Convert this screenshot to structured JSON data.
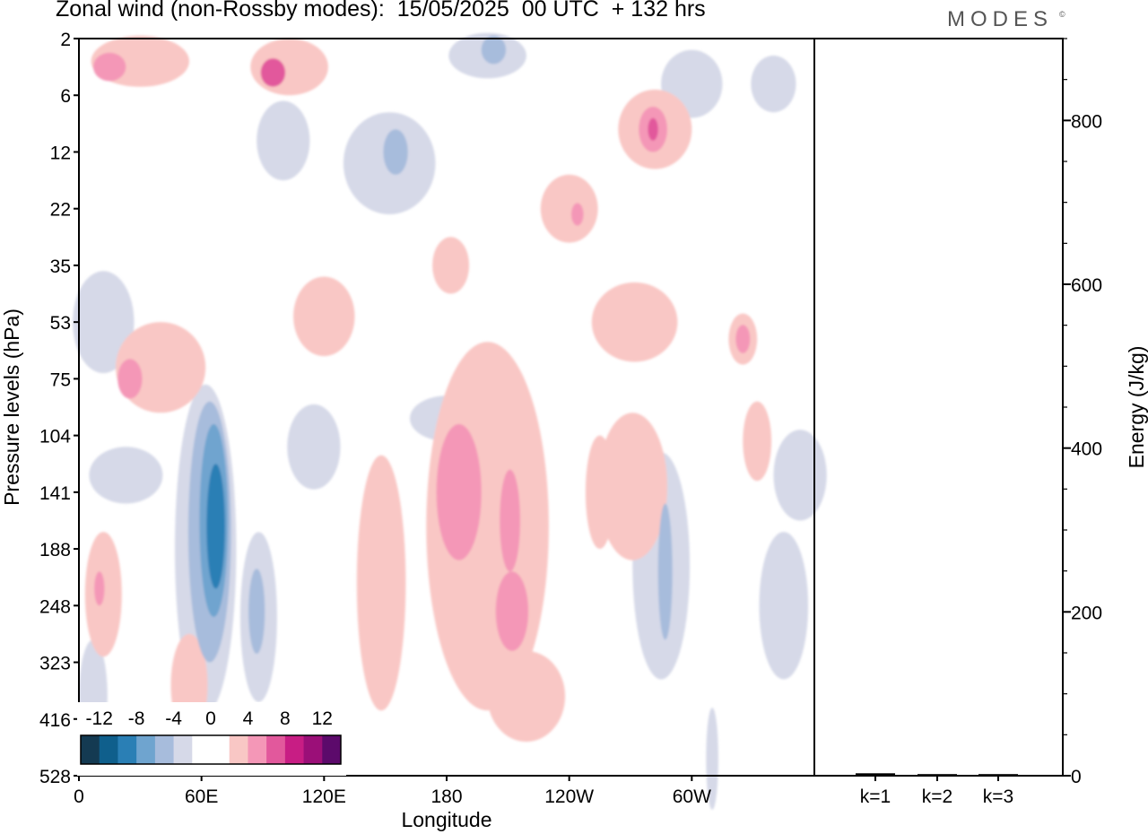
{
  "header": {
    "title": "Zonal wind (non-Rossby modes):  15/05/2025  00 UTC  + 132 hrs",
    "brand": "MODES",
    "brand_mark": "©"
  },
  "chart_data": [
    {
      "type": "heatmap",
      "title": "Zonal wind (non-Rossby modes):  15/05/2025  00 UTC  + 132 hrs",
      "xlabel": "Longitude",
      "ylabel": "Pressure levels (hPa)",
      "x_ticks": [
        "0",
        "60E",
        "120E",
        "180",
        "120W",
        "60W"
      ],
      "x_tick_values": [
        0,
        60,
        120,
        180,
        240,
        300
      ],
      "xlim": [
        0,
        360
      ],
      "y_ticks": [
        "2",
        "6",
        "12",
        "22",
        "35",
        "53",
        "75",
        "104",
        "141",
        "188",
        "248",
        "323",
        "416",
        "528"
      ],
      "y_scale": "pressure levels, top to bottom",
      "colorbar": {
        "labels": [
          "-12",
          "-8",
          "-4",
          "0",
          "4",
          "8",
          "12"
        ],
        "colors": [
          "#143a52",
          "#0f5f8c",
          "#2a7fb5",
          "#6fa4cf",
          "#a7bcdc",
          "#d6d9e8",
          "#ffffff",
          "#ffffff",
          "#f9c7c5",
          "#f497b7",
          "#e2589c",
          "#c81d84",
          "#9b0f78",
          "#5c0a6b"
        ]
      },
      "regions": [
        {
          "sign": "negative",
          "level": 3,
          "lon": 67,
          "level_index": 8.6,
          "w": 9,
          "h": 2.2
        },
        {
          "sign": "negative",
          "level": 2,
          "lon": 66,
          "level_index": 8.5,
          "w": 14,
          "h": 3.4
        },
        {
          "sign": "negative",
          "level": 1,
          "lon": 64,
          "level_index": 8.7,
          "w": 21,
          "h": 4.6
        },
        {
          "sign": "negative",
          "level": 0,
          "lon": 62,
          "level_index": 9.0,
          "w": 30,
          "h": 5.8
        },
        {
          "sign": "negative",
          "level": 1,
          "lon": 287,
          "level_index": 9.4,
          "w": 7,
          "h": 2.4
        },
        {
          "sign": "negative",
          "level": 0,
          "lon": 285,
          "level_index": 9.3,
          "w": 28,
          "h": 4.0
        },
        {
          "sign": "negative",
          "level": 0,
          "lon": 152,
          "level_index": 2.2,
          "w": 45,
          "h": 1.8
        },
        {
          "sign": "negative",
          "level": 1,
          "lon": 155,
          "level_index": 2.0,
          "w": 12,
          "h": 0.8
        },
        {
          "sign": "negative",
          "level": 0,
          "lon": 200,
          "level_index": 0.3,
          "w": 38,
          "h": 0.8
        },
        {
          "sign": "negative",
          "level": 1,
          "lon": 203,
          "level_index": 0.2,
          "w": 12,
          "h": 0.5
        },
        {
          "sign": "negative",
          "level": 0,
          "lon": 23,
          "level_index": 7.7,
          "w": 36,
          "h": 1.0
        },
        {
          "sign": "negative",
          "level": 0,
          "lon": 12,
          "level_index": 5.0,
          "w": 30,
          "h": 1.8
        },
        {
          "sign": "negative",
          "level": 0,
          "lon": 180,
          "level_index": 6.7,
          "w": 36,
          "h": 0.8
        },
        {
          "sign": "negative",
          "level": 0,
          "lon": 115,
          "level_index": 7.2,
          "w": 26,
          "h": 1.5
        },
        {
          "sign": "negative",
          "level": 0,
          "lon": 353,
          "level_index": 7.7,
          "w": 26,
          "h": 1.6
        },
        {
          "sign": "negative",
          "level": 0,
          "lon": 345,
          "level_index": 10.0,
          "w": 24,
          "h": 2.6
        },
        {
          "sign": "negative",
          "level": 0,
          "lon": 300,
          "level_index": 0.8,
          "w": 30,
          "h": 1.2
        },
        {
          "sign": "negative",
          "level": 0,
          "lon": 340,
          "level_index": 0.8,
          "w": 22,
          "h": 1.0
        },
        {
          "sign": "negative",
          "level": 1,
          "lon": 87,
          "level_index": 10.1,
          "w": 8,
          "h": 1.5
        },
        {
          "sign": "negative",
          "level": 0,
          "lon": 88,
          "level_index": 10.2,
          "w": 18,
          "h": 3.0
        },
        {
          "sign": "negative",
          "level": 0,
          "lon": 7,
          "level_index": 11.6,
          "w": 14,
          "h": 2.0
        },
        {
          "sign": "negative",
          "level": 0,
          "lon": 310,
          "level_index": 12.7,
          "w": 6,
          "h": 1.8
        },
        {
          "sign": "negative",
          "level": 0,
          "lon": 100,
          "level_index": 1.8,
          "w": 26,
          "h": 1.4
        },
        {
          "sign": "positive",
          "level": 0,
          "lon": 200,
          "level_index": 8.6,
          "w": 60,
          "h": 6.5
        },
        {
          "sign": "positive",
          "level": 1,
          "lon": 186,
          "level_index": 8.0,
          "w": 22,
          "h": 2.4
        },
        {
          "sign": "positive",
          "level": 1,
          "lon": 212,
          "level_index": 10.1,
          "w": 16,
          "h": 1.4
        },
        {
          "sign": "positive",
          "level": 1,
          "lon": 211,
          "level_index": 8.5,
          "w": 10,
          "h": 1.8
        },
        {
          "sign": "positive",
          "level": 0,
          "lon": 148,
          "level_index": 9.6,
          "w": 24,
          "h": 4.5
        },
        {
          "sign": "positive",
          "level": 0,
          "lon": 219,
          "level_index": 11.6,
          "w": 38,
          "h": 1.6
        },
        {
          "sign": "positive",
          "level": 0,
          "lon": 271,
          "level_index": 7.9,
          "w": 34,
          "h": 2.6
        },
        {
          "sign": "positive",
          "level": 0,
          "lon": 272,
          "level_index": 5.0,
          "w": 42,
          "h": 1.4
        },
        {
          "sign": "positive",
          "level": 0,
          "lon": 40,
          "level_index": 5.8,
          "w": 44,
          "h": 1.6
        },
        {
          "sign": "positive",
          "level": 1,
          "lon": 25,
          "level_index": 6.0,
          "w": 12,
          "h": 0.7
        },
        {
          "sign": "positive",
          "level": 0,
          "lon": 30,
          "level_index": 0.4,
          "w": 48,
          "h": 0.9
        },
        {
          "sign": "positive",
          "level": 1,
          "lon": 15,
          "level_index": 0.5,
          "w": 16,
          "h": 0.5
        },
        {
          "sign": "positive",
          "level": 0,
          "lon": 103,
          "level_index": 0.5,
          "w": 38,
          "h": 1.0
        },
        {
          "sign": "positive",
          "level": 2,
          "lon": 95,
          "level_index": 0.6,
          "w": 12,
          "h": 0.5
        },
        {
          "sign": "positive",
          "level": 0,
          "lon": 282,
          "level_index": 1.6,
          "w": 36,
          "h": 1.4
        },
        {
          "sign": "positive",
          "level": 1,
          "lon": 281,
          "level_index": 1.6,
          "w": 14,
          "h": 0.8
        },
        {
          "sign": "positive",
          "level": 2,
          "lon": 281,
          "level_index": 1.6,
          "w": 5,
          "h": 0.4
        },
        {
          "sign": "positive",
          "level": 0,
          "lon": 240,
          "level_index": 3.0,
          "w": 28,
          "h": 1.2
        },
        {
          "sign": "positive",
          "level": 1,
          "lon": 244,
          "level_index": 3.1,
          "w": 6,
          "h": 0.4
        },
        {
          "sign": "positive",
          "level": 0,
          "lon": 120,
          "level_index": 4.9,
          "w": 30,
          "h": 1.4
        },
        {
          "sign": "positive",
          "level": 0,
          "lon": 325,
          "level_index": 5.3,
          "w": 14,
          "h": 0.9
        },
        {
          "sign": "positive",
          "level": 1,
          "lon": 325,
          "level_index": 5.3,
          "w": 7,
          "h": 0.5
        },
        {
          "sign": "positive",
          "level": 0,
          "lon": 12,
          "level_index": 9.8,
          "w": 18,
          "h": 2.2
        },
        {
          "sign": "positive",
          "level": 1,
          "lon": 10,
          "level_index": 9.7,
          "w": 5,
          "h": 0.6
        },
        {
          "sign": "positive",
          "level": 0,
          "lon": 54,
          "level_index": 11.4,
          "w": 18,
          "h": 1.8
        },
        {
          "sign": "positive",
          "level": 0,
          "lon": 182,
          "level_index": 4.0,
          "w": 18,
          "h": 1.0
        },
        {
          "sign": "positive",
          "level": 0,
          "lon": 255,
          "level_index": 8.0,
          "w": 14,
          "h": 2.0
        },
        {
          "sign": "positive",
          "level": 0,
          "lon": 332,
          "level_index": 7.1,
          "w": 14,
          "h": 1.4
        }
      ]
    },
    {
      "type": "bar",
      "ylabel": "Energy (J/kg)",
      "categories": [
        "k=1",
        "k=2",
        "k=3"
      ],
      "values": [
        3,
        2,
        2
      ],
      "ylim": [
        0,
        900
      ],
      "y_ticks": [
        0,
        200,
        400,
        600,
        800
      ]
    }
  ]
}
